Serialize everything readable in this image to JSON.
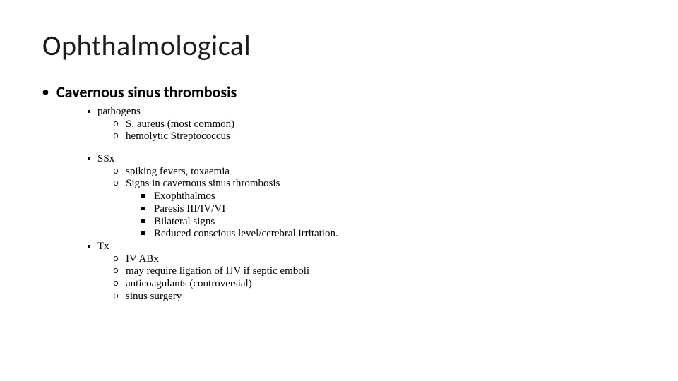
{
  "colors": {
    "background": "#ffffff",
    "text": "#000000",
    "title": "#1a1a1a"
  },
  "typography": {
    "title_font": "Calibri Light",
    "title_size_pt": 40,
    "lvl1_font": "Calibri",
    "lvl1_size_pt": 22,
    "lvl1_weight": "bold",
    "body_font": "Times New Roman",
    "body_size_pt": 15
  },
  "title": "Ophthalmological",
  "lvl1": "Cavernous sinus thrombosis",
  "sections": {
    "pathogens": {
      "label": "pathogens",
      "items": [
        "S. aureus (most common)",
        "hemolytic Streptococcus"
      ]
    },
    "ssx": {
      "label": "SSx",
      "items": [
        "spiking fevers, toxaemia",
        "Signs in cavernous sinus thrombosis"
      ],
      "signs_sub": [
        "Exophthalmos",
        "Paresis III/IV/VI",
        "Bilateral signs",
        "Reduced conscious level/cerebral irritation."
      ]
    },
    "tx": {
      "label": "Tx",
      "items": [
        "IV ABx",
        "may require ligation of IJV if septic emboli",
        "anticoagulants (controversial)",
        "sinus surgery"
      ]
    }
  }
}
